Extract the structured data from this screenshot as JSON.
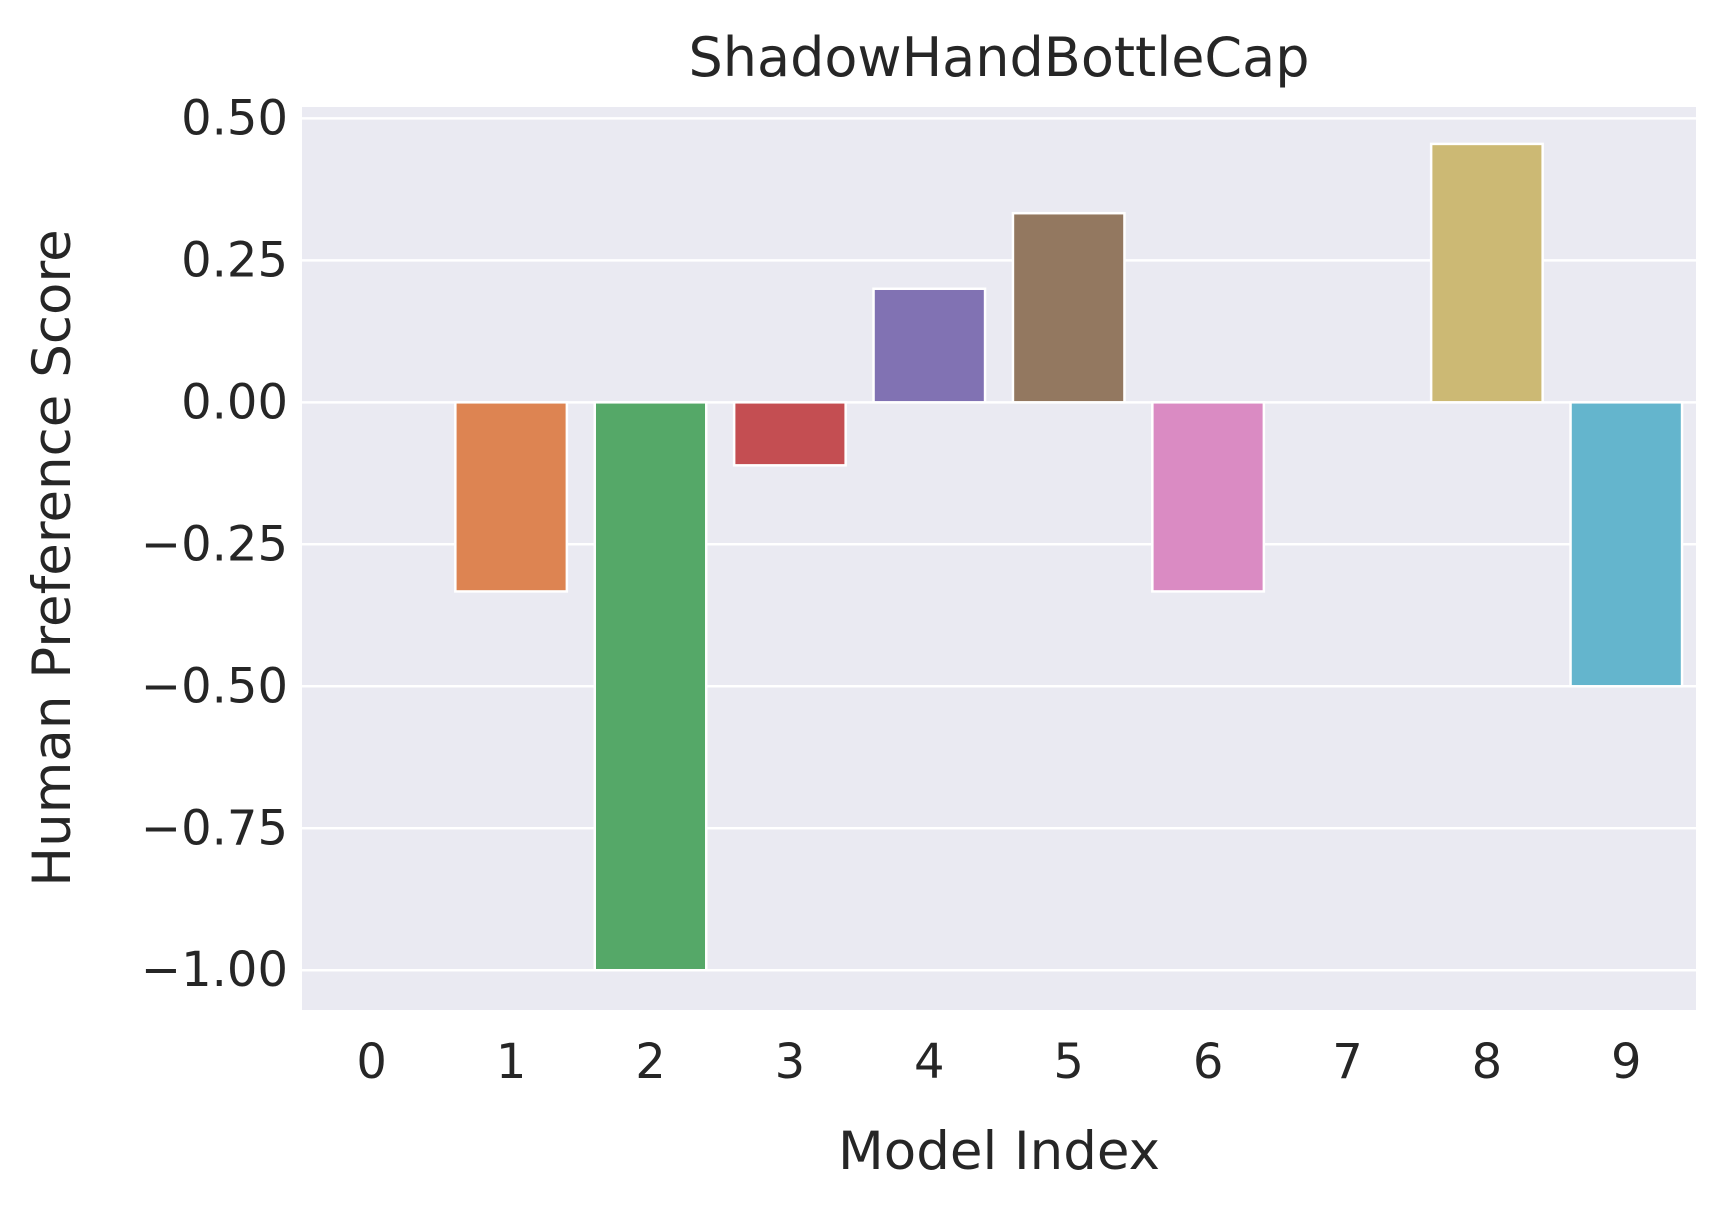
{
  "chart_data": {
    "type": "bar",
    "title": "ShadowHandBottleCap",
    "xlabel": "Model Index",
    "ylabel": "Human Preference Score",
    "categories": [
      "0",
      "1",
      "2",
      "3",
      "4",
      "5",
      "6",
      "7",
      "8",
      "9"
    ],
    "values": [
      0.0,
      -0.333,
      -1.0,
      -0.111,
      0.2,
      0.333,
      -0.333,
      0.0,
      0.455,
      -0.5
    ],
    "colors": [
      "#4c72b0",
      "#dd8452",
      "#55a868",
      "#c44e52",
      "#8172b3",
      "#937860",
      "#da8bc3",
      "#8c8c8c",
      "#ccb974",
      "#64b5cd"
    ],
    "ylim": [
      -1.07,
      0.52
    ],
    "yticks": [
      0.5,
      0.25,
      0.0,
      -0.25,
      -0.5,
      -0.75,
      -1.0
    ],
    "ytick_labels": [
      "0.50",
      "0.25",
      "0.00",
      "−0.25",
      "−0.50",
      "−0.75",
      "−1.00"
    ],
    "grid": true,
    "legend": "none"
  }
}
